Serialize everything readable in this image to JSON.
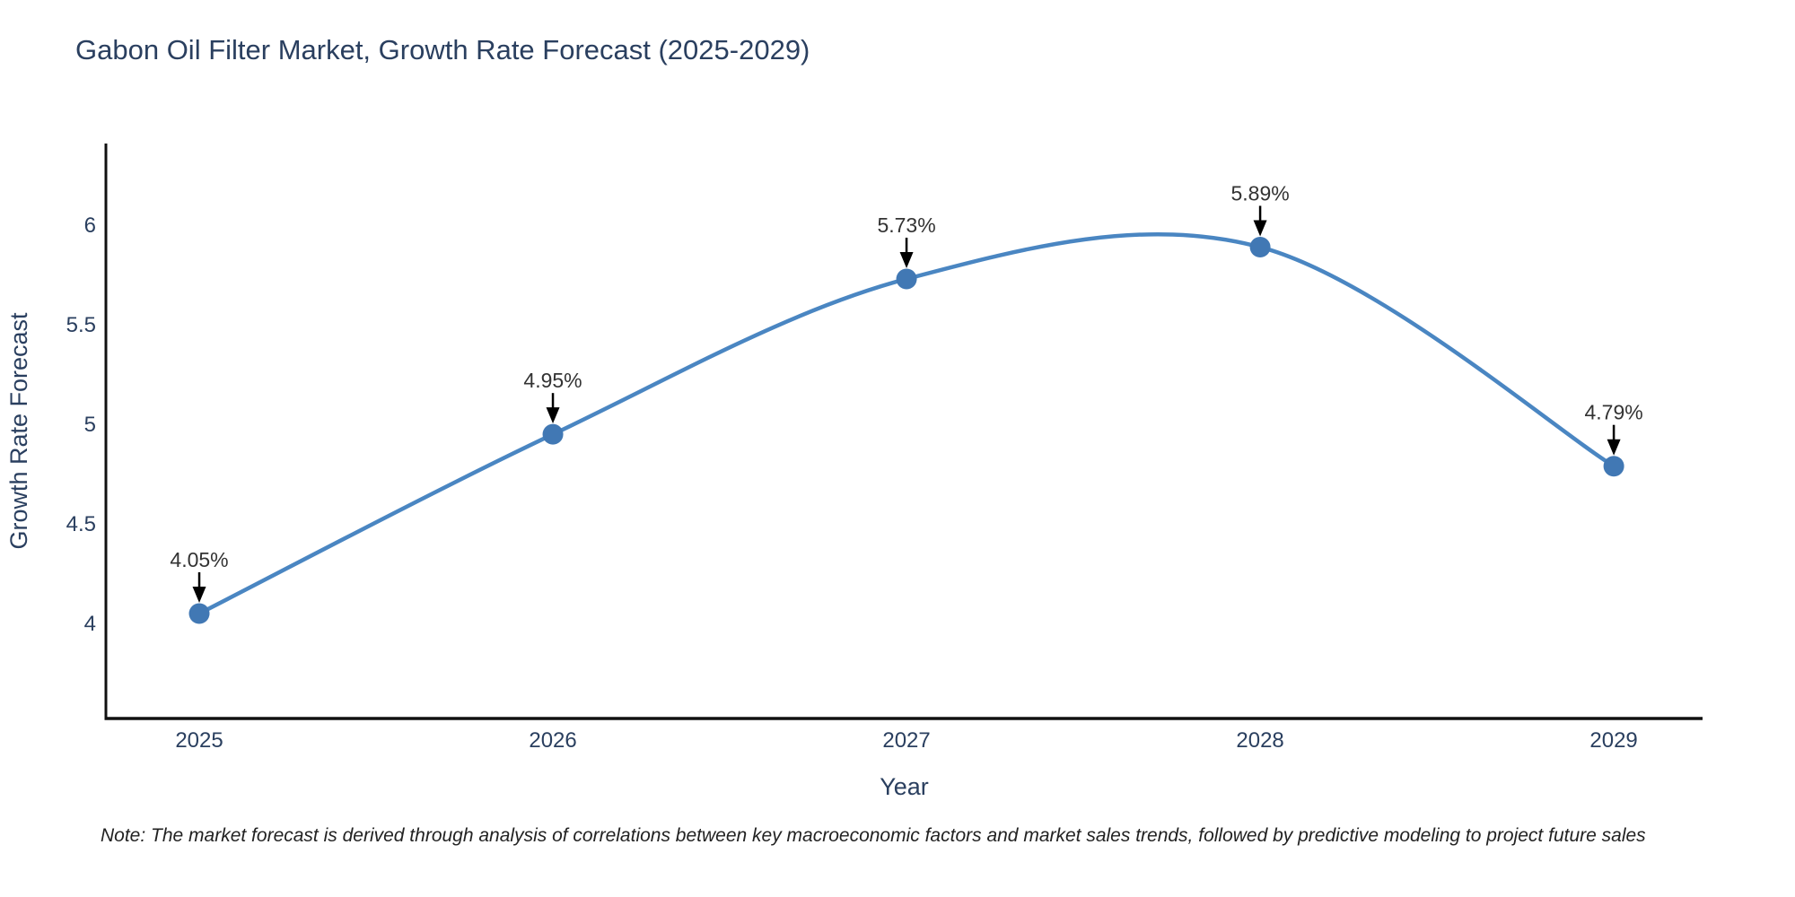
{
  "title": "Gabon Oil Filter Market, Growth Rate Forecast (2025-2029)",
  "note": "Note: The market forecast is derived through analysis of correlations between key macroeconomic factors and market sales trends, followed by predictive modeling to project future sales",
  "chart_data": {
    "type": "line",
    "title": "Gabon Oil Filter Market, Growth Rate Forecast (2025-2029)",
    "xlabel": "Year",
    "ylabel": "Growth Rate Forecast",
    "x": [
      2025,
      2026,
      2027,
      2028,
      2029
    ],
    "series": [
      {
        "name": "Growth Rate Forecast",
        "values": [
          4.05,
          4.95,
          5.73,
          5.89,
          4.79
        ]
      }
    ],
    "point_labels": [
      "4.05%",
      "4.95%",
      "5.73%",
      "5.89%",
      "4.79%"
    ],
    "x_tick_labels": [
      "2025",
      "2026",
      "2027",
      "2028",
      "2029"
    ],
    "y_ticks": [
      4,
      4.5,
      5,
      5.5,
      6
    ],
    "y_tick_labels": [
      "4",
      "4.5",
      "5",
      "5.5",
      "6"
    ],
    "xlim": [
      2024.736,
      2029.251
    ],
    "ylim": [
      3.523,
      6.41
    ],
    "grid": false,
    "legend": "none",
    "line_shape": "spline",
    "colors": {
      "line": "#4a86c2",
      "marker": "#4178b4",
      "axis_line": "#111111",
      "tick_label": "#2a3f5f",
      "axis_title": "#2a3f5f",
      "chart_title": "#2a3f5f",
      "annotation_text": "#333333",
      "arrow": "#000000",
      "background": "#ffffff"
    }
  }
}
